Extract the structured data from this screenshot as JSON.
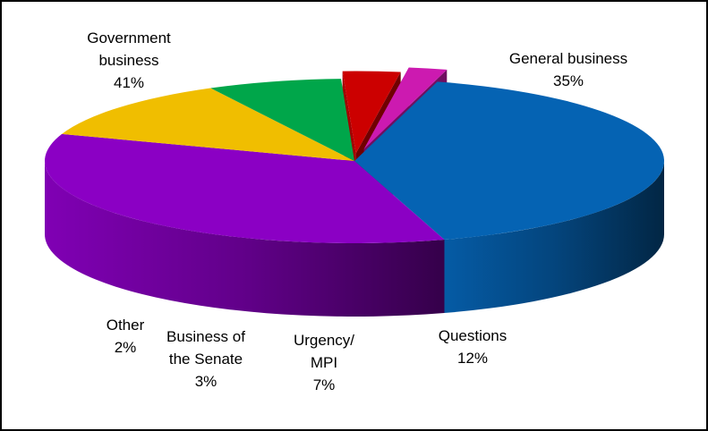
{
  "chart_data": {
    "type": "pie",
    "style": "3d-exploded",
    "slices": [
      {
        "label_lines": [
          "Government",
          "business"
        ],
        "value": 41,
        "percent_label": "41%",
        "color": "#0563b3"
      },
      {
        "label_lines": [
          "General business"
        ],
        "value": 35,
        "percent_label": "35%",
        "color": "#8b00c4"
      },
      {
        "label_lines": [
          "Questions"
        ],
        "value": 12,
        "percent_label": "12%",
        "color": "#f0be00"
      },
      {
        "label_lines": [
          "Urgency/",
          "MPI"
        ],
        "value": 7,
        "percent_label": "7%",
        "color": "#00a64a"
      },
      {
        "label_lines": [
          "Business of",
          "the Senate"
        ],
        "value": 3,
        "percent_label": "3%",
        "color": "#cc0000"
      },
      {
        "label_lines": [
          "Other"
        ],
        "value": 2,
        "percent_label": "2%",
        "color": "#cc1ab0"
      }
    ],
    "legend": "none",
    "data_labels": "outside"
  }
}
